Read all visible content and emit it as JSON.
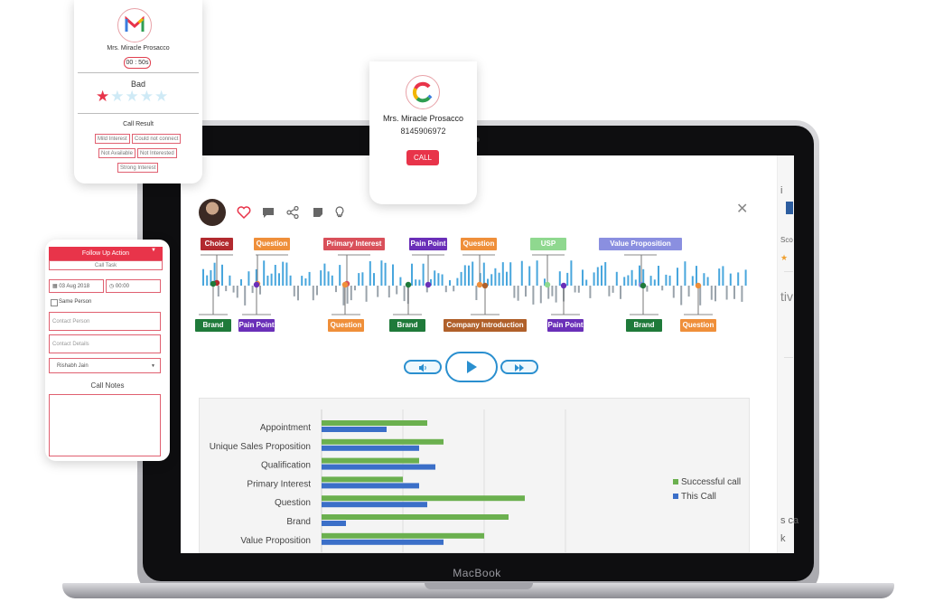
{
  "device": {
    "brand_label": "MacBook"
  },
  "contact_card": {
    "name": "Mrs. Miracle Prosacco",
    "phone": "8145906972",
    "call_label": "CALL"
  },
  "rating_card": {
    "name": "Mrs. Miracle Prosacco",
    "timer": "00 : 50s",
    "rating_label": "Bad",
    "stars_filled": 1,
    "stars_total": 5,
    "call_result_title": "Call Result",
    "results": [
      "Mild Interest",
      "Could not connect",
      "Not Available",
      "Not Interested",
      "Strong Interest"
    ]
  },
  "follow_up": {
    "header": "Follow Up Action",
    "sub_label": "Call Task",
    "date": "03 Aug 2018",
    "time": "00:00",
    "same_person": "Same Person",
    "contact_person_placeholder": "Contact Person",
    "contact_details_placeholder": "Contact Details",
    "assignee": "Rishabh Jain",
    "notes_label": "Call Notes"
  },
  "strip": {
    "chars": [
      "i",
      "Sco",
      "★",
      "tiv",
      "s ca",
      "k"
    ]
  },
  "waveform_tags": {
    "top": [
      {
        "label": "Choice",
        "color": "#b22a2f"
      },
      {
        "label": "Question",
        "color": "#ef8f3a"
      },
      {
        "label": "Primary Interest",
        "color": "#d9505a"
      },
      {
        "label": "Pain Point",
        "color": "#6a2fb8"
      },
      {
        "label": "Question",
        "color": "#ef8f3a"
      },
      {
        "label": "USP",
        "color": "#8fd88f"
      },
      {
        "label": "Value Proposition",
        "color": "#8a8fe0"
      }
    ],
    "bottom": [
      {
        "label": "Brand",
        "color": "#1f7a3a"
      },
      {
        "label": "Pain Point",
        "color": "#6a2fb8"
      },
      {
        "label": "Question",
        "color": "#ef8f3a"
      },
      {
        "label": "Brand",
        "color": "#1f7a3a"
      },
      {
        "label": "Company Introduction",
        "color": "#b0602a"
      },
      {
        "label": "Pain Point",
        "color": "#6a2fb8"
      },
      {
        "label": "Brand",
        "color": "#1f7a3a"
      },
      {
        "label": "Question",
        "color": "#ef8f3a"
      }
    ]
  },
  "colors": {
    "accent": "#e8344a",
    "player": "#2a8fcf",
    "success": "#6bb04f",
    "this_call": "#3b6fc8"
  },
  "chart_data": {
    "type": "bar",
    "orientation": "horizontal",
    "categories": [
      "Appointment",
      "Unique Sales Proposition",
      "Qualification",
      "Primary Interest",
      "Question",
      "Brand",
      "Value Proposition"
    ],
    "series": [
      {
        "name": "Successful call",
        "values": [
          26,
          30,
          24,
          20,
          50,
          46,
          40
        ]
      },
      {
        "name": "This Call",
        "values": [
          16,
          24,
          28,
          24,
          26,
          6,
          30
        ]
      }
    ],
    "xlim": [
      0,
      100
    ],
    "grid": true,
    "legend": "right"
  }
}
